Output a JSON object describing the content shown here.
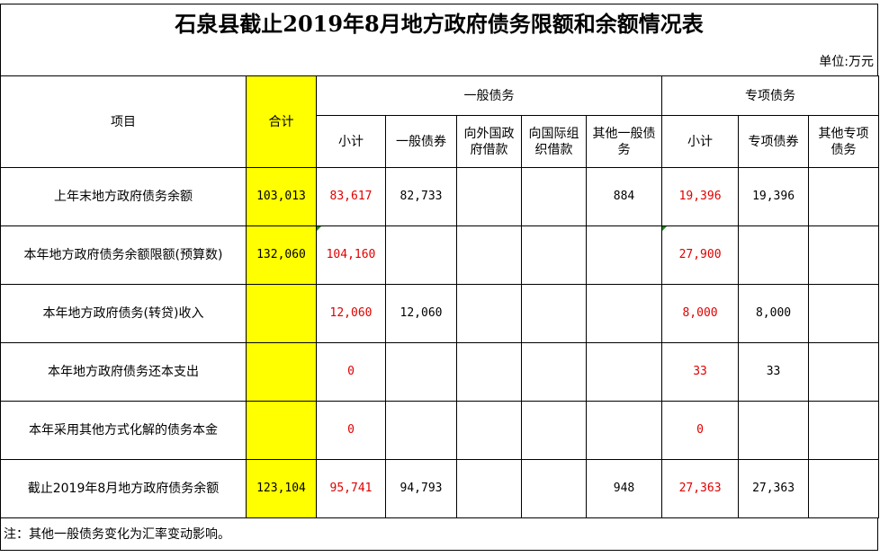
{
  "title": "石泉县截止2019年8月地方政府债务限额和余额情况表",
  "unit": "单位:万元",
  "headers": {
    "item": "项目",
    "total": "合计",
    "general_group": "一般债务",
    "special_group": "专项债务",
    "gen_subtotal": "小计",
    "gen_bonds": "一般债券",
    "gen_foreign_gov": "向外国政府借款",
    "gen_intl_org": "向国际组织借款",
    "gen_other": "其他一般债务",
    "sp_subtotal": "小计",
    "sp_bonds": "专项债券",
    "sp_other": "其他专项债务"
  },
  "rows": [
    {
      "label": "上年末地方政府债务余额",
      "total": "103,013",
      "gen_subtotal": "83,617",
      "gen_bonds": "82,733",
      "gen_foreign_gov": "",
      "gen_intl_org": "",
      "gen_other": "884",
      "sp_subtotal": "19,396",
      "sp_bonds": "19,396",
      "sp_other": ""
    },
    {
      "label": "本年地方政府债务余额限额(预算数)",
      "total": "132,060",
      "gen_subtotal": "104,160",
      "gen_bonds": "",
      "gen_foreign_gov": "",
      "gen_intl_org": "",
      "gen_other": "",
      "sp_subtotal": "27,900",
      "sp_bonds": "",
      "sp_other": ""
    },
    {
      "label": "本年地方政府债务(转贷)收入",
      "total": "",
      "gen_subtotal": "12,060",
      "gen_bonds": "12,060",
      "gen_foreign_gov": "",
      "gen_intl_org": "",
      "gen_other": "",
      "sp_subtotal": "8,000",
      "sp_bonds": "8,000",
      "sp_other": ""
    },
    {
      "label": "本年地方政府债务还本支出",
      "total": "",
      "gen_subtotal": "0",
      "gen_bonds": "",
      "gen_foreign_gov": "",
      "gen_intl_org": "",
      "gen_other": "",
      "sp_subtotal": "33",
      "sp_bonds": "33",
      "sp_other": ""
    },
    {
      "label": "本年采用其他方式化解的债务本金",
      "total": "",
      "gen_subtotal": "0",
      "gen_bonds": "",
      "gen_foreign_gov": "",
      "gen_intl_org": "",
      "gen_other": "",
      "sp_subtotal": "0",
      "sp_bonds": "",
      "sp_other": ""
    },
    {
      "label": "截止2019年8月地方政府债务余额",
      "total": "123,104",
      "gen_subtotal": "95,741",
      "gen_bonds": "94,793",
      "gen_foreign_gov": "",
      "gen_intl_org": "",
      "gen_other": "948",
      "sp_subtotal": "27,363",
      "sp_bonds": "27,363",
      "sp_other": ""
    }
  ],
  "note": "注：其他一般债务变化为汇率变动影响。",
  "colors": {
    "highlight": "#ffff00",
    "red_value": "#e00000"
  }
}
